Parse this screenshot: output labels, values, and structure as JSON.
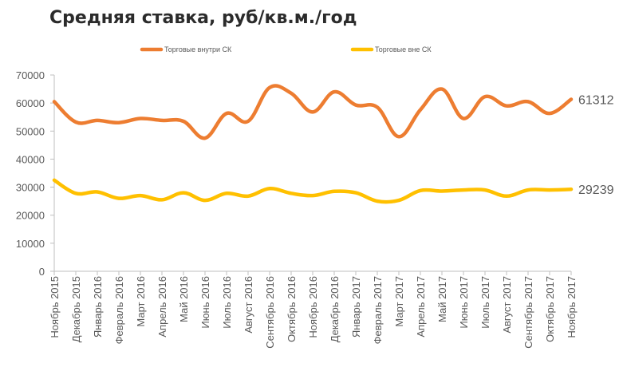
{
  "chart_data": {
    "type": "line",
    "title": "Средняя ставка, руб/кв.м./год",
    "xlabel": "",
    "ylabel": "",
    "ylim": [
      0,
      70000
    ],
    "yticks": [
      0,
      10000,
      20000,
      30000,
      40000,
      50000,
      60000,
      70000
    ],
    "grid": false,
    "legend_position": "top",
    "categories": [
      "Ноябрь 2015",
      "Декабрь 2015",
      "Январь 2016",
      "Февраль 2016",
      "Март 2016",
      "Апрель 2016",
      "Май 2016",
      "Июнь 2016",
      "Июль 2016",
      "Август 2016",
      "Сентябрь 2016",
      "Октябрь 2016",
      "Ноябрь 2016",
      "Декабрь 2016",
      "Январь 2017",
      "Февраль 2017",
      "Март 2017",
      "Апрель 2017",
      "Май 2017",
      "Июнь 2017",
      "Июль 2017",
      "Август 2017",
      "Сентябрь 2017",
      "Октябрь 2017",
      "Ноябрь 2017"
    ],
    "series": [
      {
        "name": "Торговые внутри СК",
        "color": "#ED7D31",
        "values": [
          60500,
          53200,
          53800,
          53000,
          54500,
          53800,
          53500,
          47500,
          56300,
          53500,
          65500,
          63500,
          56800,
          64000,
          59300,
          58500,
          48000,
          57600,
          65000,
          54500,
          62300,
          59000,
          60500,
          56300,
          61312
        ],
        "end_label": "61312"
      },
      {
        "name": "Торговые вне СК",
        "color": "#FFC000",
        "values": [
          32500,
          27800,
          28300,
          26000,
          27000,
          25500,
          28000,
          25300,
          27800,
          26800,
          29500,
          27800,
          27000,
          28500,
          28000,
          25000,
          25300,
          28800,
          28600,
          29000,
          29000,
          26800,
          29000,
          29000,
          29239
        ],
        "end_label": "29239"
      }
    ]
  }
}
